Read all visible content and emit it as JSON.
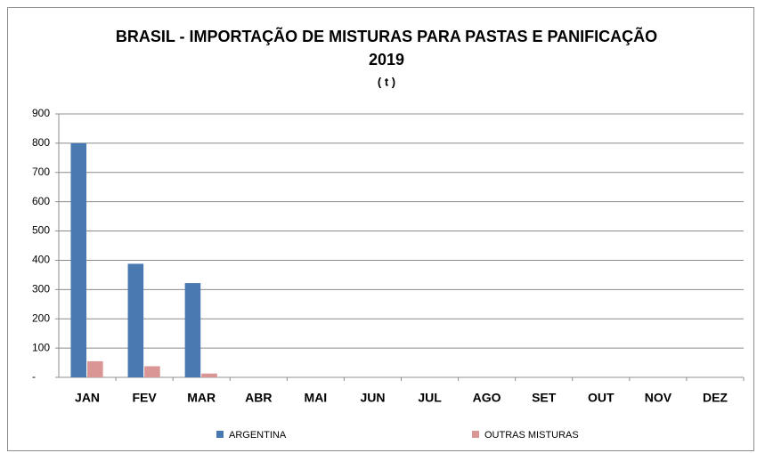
{
  "chart_data": {
    "type": "bar",
    "title": "BRASIL - IMPORTAÇÃO DE MISTURAS PARA PASTAS E PANIFICAÇÃO",
    "subtitle": "2019",
    "unit_label": "( t )",
    "categories": [
      "JAN",
      "FEV",
      "MAR",
      "ABR",
      "MAI",
      "JUN",
      "JUL",
      "AGO",
      "SET",
      "OUT",
      "NOV",
      "DEZ"
    ],
    "series": [
      {
        "name": "ARGENTINA",
        "color": "#4a78b0",
        "values": [
          800,
          388,
          322,
          null,
          null,
          null,
          null,
          null,
          null,
          null,
          null,
          null
        ]
      },
      {
        "name": "OUTRAS MISTURAS",
        "color": "#d99694",
        "values": [
          55,
          38,
          13,
          null,
          null,
          null,
          null,
          null,
          null,
          null,
          null,
          null
        ]
      }
    ],
    "ylim": [
      0,
      900
    ],
    "yticks": [
      {
        "value": 0,
        "label": "-"
      },
      100,
      200,
      300,
      400,
      500,
      600,
      700,
      800,
      900
    ],
    "grid": true,
    "legend": "bottom"
  }
}
